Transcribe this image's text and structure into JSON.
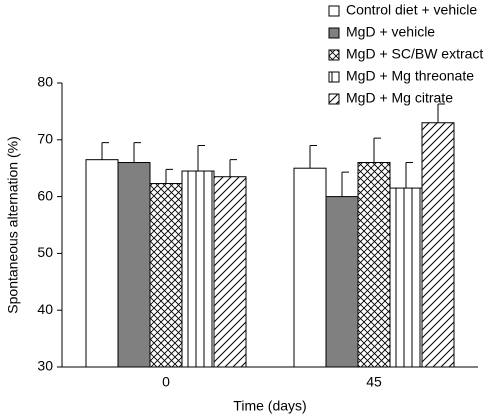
{
  "chart_data": {
    "type": "bar",
    "x_label": "Time (days)",
    "y_label": "Spontaneous alternation (%)",
    "categories": [
      "0",
      "45"
    ],
    "ylim": [
      30,
      80
    ],
    "yticks": [
      30,
      40,
      50,
      60,
      70,
      80
    ],
    "grid": false,
    "legend": "top-right",
    "series": [
      {
        "name": "Control diet + vehicle",
        "color": "#ffffff",
        "pattern": "none",
        "values": [
          66.5,
          65
        ],
        "errors": [
          3,
          4
        ]
      },
      {
        "name": "MgD + vehicle",
        "color": "#808080",
        "pattern": "solid",
        "values": [
          66,
          60
        ],
        "errors": [
          3.5,
          4.3
        ]
      },
      {
        "name": "MgD + SC/BW extract",
        "color": "#ffffff",
        "pattern": "crosshatch",
        "values": [
          62.3,
          66
        ],
        "errors": [
          2.5,
          4.3
        ]
      },
      {
        "name": "MgD + Mg threonate",
        "color": "#ffffff",
        "pattern": "vertical",
        "values": [
          64.5,
          61.5
        ],
        "errors": [
          4.5,
          4.5
        ]
      },
      {
        "name": "MgD + Mg citrate",
        "color": "#ffffff",
        "pattern": "diagonal",
        "values": [
          63.5,
          73
        ],
        "errors": [
          3,
          3.3
        ]
      }
    ]
  }
}
